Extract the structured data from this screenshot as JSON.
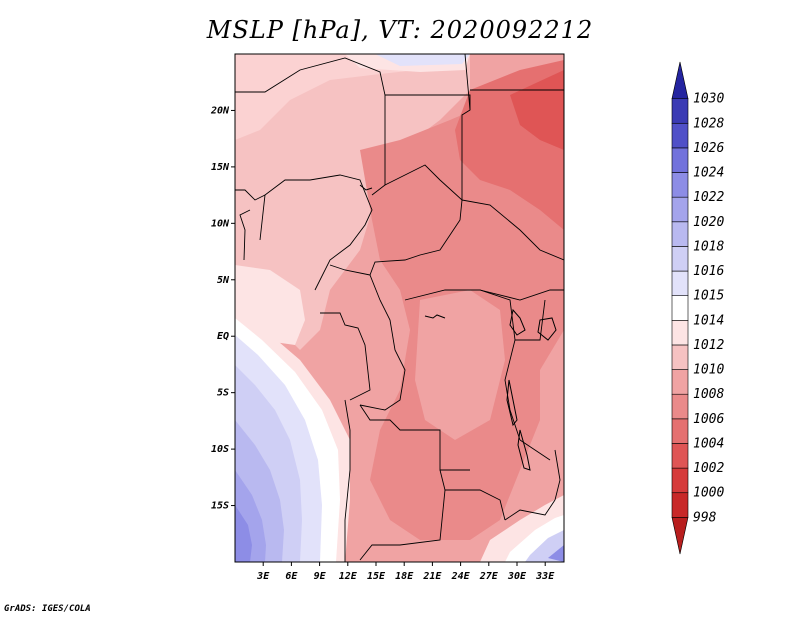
{
  "title": "MSLP [hPa], VT: 2020092212",
  "credit": "GrADS: IGES/COLA",
  "map": {
    "lat_labels": [
      "20N",
      "15N",
      "10N",
      "5N",
      "EQ",
      "5S",
      "10S",
      "15S"
    ],
    "lat_values": [
      20,
      15,
      10,
      5,
      0,
      -5,
      -10,
      -15
    ],
    "lon_labels": [
      "3E",
      "6E",
      "9E",
      "12E",
      "15E",
      "18E",
      "21E",
      "24E",
      "27E",
      "30E",
      "33E"
    ],
    "lon_values": [
      3,
      6,
      9,
      12,
      15,
      18,
      21,
      24,
      27,
      30,
      33
    ],
    "lon_range": [
      0,
      35
    ],
    "lat_range": [
      -20,
      25
    ]
  },
  "colorbar": {
    "levels": [
      "998",
      "1000",
      "1002",
      "1004",
      "1006",
      "1008",
      "1010",
      "1012",
      "1014",
      "1015",
      "1016",
      "1018",
      "1020",
      "1022",
      "1024",
      "1026",
      "1028",
      "1030"
    ],
    "colors": [
      "#b81e1e",
      "#c82828",
      "#d63a3a",
      "#df5555",
      "#e57070",
      "#ea8a8a",
      "#f0a3a3",
      "#f6c2c2",
      "#fde4e4",
      "#ffffff",
      "#e2e2fa",
      "#cfcff5",
      "#b9b9f0",
      "#a4a4ec",
      "#8d8de6",
      "#7272dc",
      "#5050c8",
      "#3a3ab4",
      "#2424a0"
    ]
  }
}
